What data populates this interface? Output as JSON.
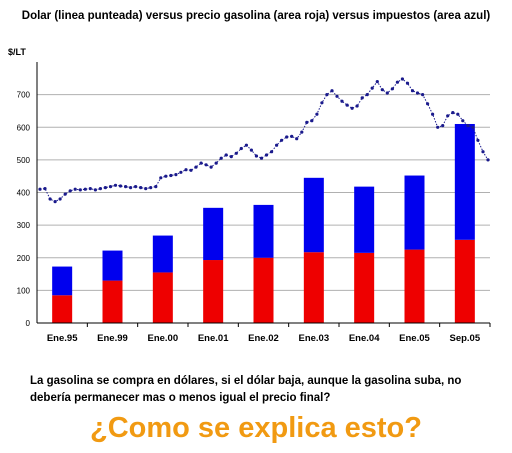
{
  "title": "Dolar (linea punteada) versus precio gasolina (area roja) versus impuestos (area azul)",
  "caption": "La gasolina se compra en dólares, si el dólar baja, aunque la gasolina suba, no debería permanecer mas o menos igual el precio final?",
  "question": "¿Como se explica esto?",
  "colors": {
    "gasolina": "#ee0000",
    "impuestos": "#0000ee",
    "dolar": "#1a1a8c",
    "grid": "#b0b0b0"
  },
  "chart_data": {
    "type": "bar",
    "title": "Dolar (linea punteada) versus precio gasolina (area roja) versus impuestos (area azul)",
    "ylabel": "$/LT",
    "ylim": [
      0,
      800
    ],
    "yticks": [
      0,
      100,
      200,
      300,
      400,
      500,
      600,
      700
    ],
    "grid": true,
    "categories": [
      "Ene.95",
      "Ene.99",
      "Ene.00",
      "Ene.01",
      "Ene.02",
      "Ene.03",
      "Ene.04",
      "Ene.05",
      "Sep.05"
    ],
    "series": [
      {
        "stack": "total",
        "values": [
          85,
          130,
          155,
          193,
          200,
          217,
          215,
          225,
          255
        ]
      },
      {
        "stack": "total",
        "values": [
          88,
          92,
          113,
          160,
          162,
          228,
          203,
          227,
          355
        ]
      }
    ],
    "dolar_line": {
      "style": "dotted",
      "values": [
        410,
        412,
        380,
        372,
        380,
        395,
        405,
        410,
        408,
        410,
        412,
        408,
        412,
        415,
        418,
        422,
        420,
        418,
        415,
        418,
        415,
        412,
        415,
        418,
        445,
        450,
        452,
        455,
        462,
        470,
        468,
        478,
        490,
        485,
        478,
        490,
        505,
        515,
        510,
        520,
        535,
        545,
        530,
        512,
        505,
        515,
        525,
        545,
        560,
        570,
        572,
        565,
        585,
        615,
        620,
        640,
        675,
        700,
        712,
        695,
        680,
        668,
        658,
        665,
        690,
        700,
        720,
        740,
        715,
        705,
        718,
        738,
        748,
        735,
        712,
        705,
        700,
        672,
        640,
        600,
        605,
        635,
        645,
        640,
        620,
        605,
        600,
        560,
        525,
        500
      ]
    }
  }
}
